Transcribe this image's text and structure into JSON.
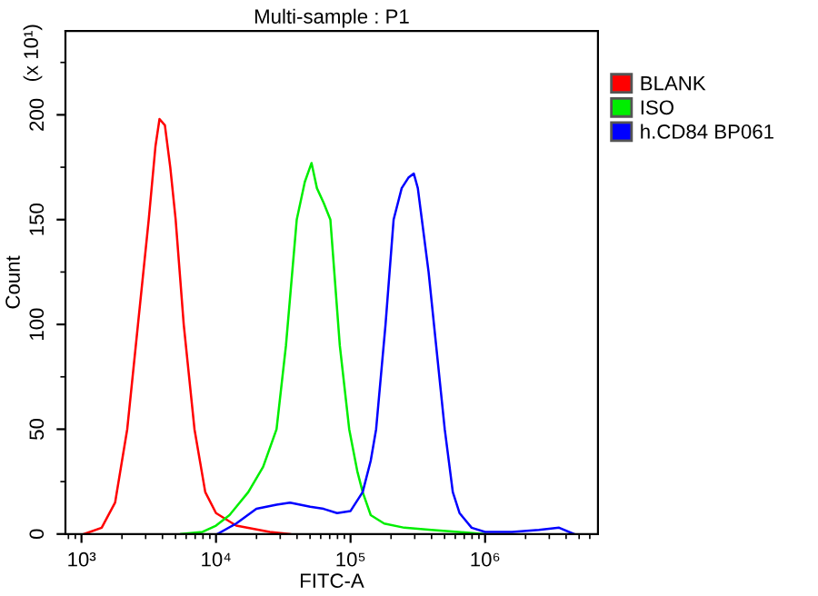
{
  "chart_data": {
    "type": "line",
    "title": "Multi-sample : P1",
    "xlabel": "FITC-A",
    "ylabel": "Count",
    "annotations": [
      "(x 10¹)"
    ],
    "log": "x",
    "xlim": [
      760,
      6900000
    ],
    "xticks": [
      {
        "value": 1000,
        "label": "10³"
      },
      {
        "value": 10000,
        "label": "10⁴"
      },
      {
        "value": 100000,
        "label": "10⁵"
      },
      {
        "value": 1000000,
        "label": "10⁶"
      }
    ],
    "ylim": [
      0,
      240
    ],
    "yticks": [
      0,
      50,
      100,
      150,
      200
    ],
    "grid": false,
    "legend": "top right",
    "marker": "none",
    "line_style": "solid",
    "series": [
      {
        "name": "BLANK",
        "color": "#ff0000",
        "x": [
          1047,
          1413,
          1778,
          2188,
          2630,
          3162,
          3548,
          3802,
          4169,
          4571,
          5012,
          5754,
          6918,
          8318,
          10000,
          14125,
          25119,
          35481
        ],
        "values": [
          0,
          3,
          15,
          50,
          100,
          150,
          185,
          198,
          195,
          175,
          150,
          100,
          50,
          20,
          10,
          4,
          1,
          0
        ]
      },
      {
        "name": "ISO",
        "color": "#00ee00",
        "x": [
          5495,
          7943,
          10000,
          12589,
          17378,
          22387,
          28184,
          33113,
          39811,
          45709,
          51286,
          56234,
          63096,
          70795,
          83176,
          97724,
          112202,
          123027,
          141254,
          177828,
          251189,
          398107,
          630957,
          1000000
        ],
        "values": [
          0,
          1,
          4,
          9,
          20,
          32,
          50,
          90,
          150,
          168,
          177,
          165,
          158,
          150,
          90,
          50,
          30,
          20,
          9,
          5,
          3,
          2,
          1,
          0
        ]
      },
      {
        "name": "h.CD84 BP061",
        "color": "#0000ff",
        "x": [
          10233,
          14125,
          19953,
          28184,
          35481,
          50119,
          63096,
          79433,
          100000,
          123027,
          141254,
          154882,
          181970,
          208930,
          239883,
          269153,
          295121,
          316228,
          338844,
          380189,
          416869,
          501187,
          575440,
          645654,
          794328,
          1000000,
          1584893,
          2511886,
          3548134,
          4570882
        ],
        "values": [
          0,
          5,
          12,
          14,
          15,
          13,
          12,
          10,
          11,
          20,
          35,
          50,
          100,
          150,
          165,
          170,
          172,
          165,
          150,
          125,
          100,
          50,
          20,
          10,
          3,
          1,
          1,
          2,
          3,
          0
        ]
      }
    ]
  }
}
